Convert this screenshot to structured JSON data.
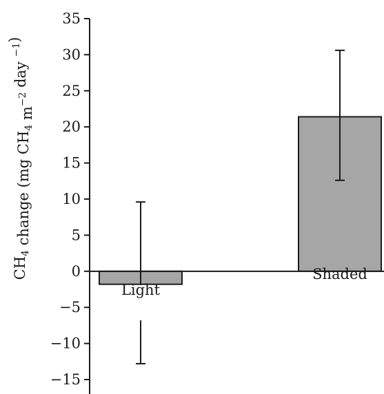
{
  "chart_data": {
    "type": "bar",
    "categories": [
      "Light",
      "Shaded"
    ],
    "values": [
      -1.8,
      21.4
    ],
    "error_bars": [
      {
        "low": -12.8,
        "high": 9.6
      },
      {
        "low": 12.6,
        "high": 30.6
      }
    ],
    "ylim": [
      -17,
      35
    ],
    "yticks": [
      35,
      30,
      25,
      20,
      15,
      10,
      5,
      0,
      -5,
      -10,
      -15
    ],
    "ytick_labels": [
      "35",
      "30",
      "25",
      "20",
      "15",
      "10",
      "5",
      "0",
      "−5",
      "−10",
      "−15"
    ],
    "ylabel": {
      "parts": [
        {
          "t": "CH",
          "s": "normal"
        },
        {
          "t": "4",
          "s": "sub"
        },
        {
          "t": " change (mg CH",
          "s": "normal"
        },
        {
          "t": "4",
          "s": "sub"
        },
        {
          "t": " m",
          "s": "normal"
        },
        {
          "t": "−2",
          "s": "sup"
        },
        {
          "t": " day ",
          "s": "normal"
        },
        {
          "t": "−1",
          "s": "sup"
        },
        {
          "t": ")",
          "s": "normal"
        }
      ]
    },
    "xlabel": "",
    "title": "",
    "bar_color": "#a6a6a6",
    "grid": false
  }
}
